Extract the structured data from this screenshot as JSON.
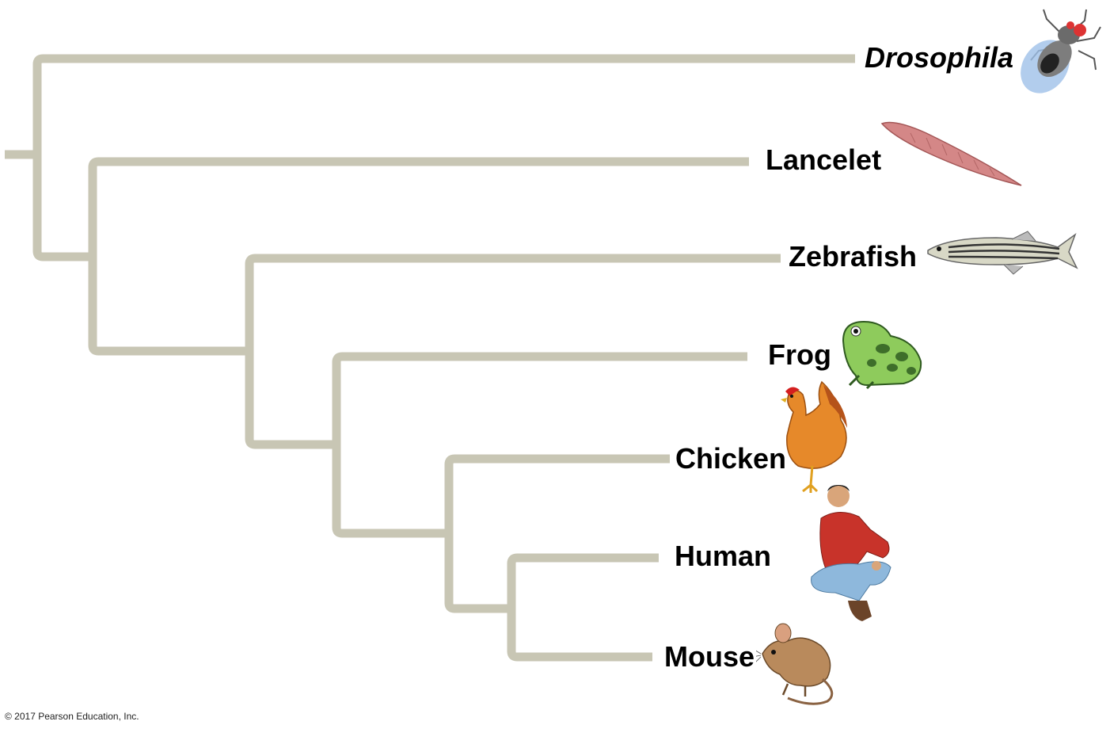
{
  "taxa": [
    {
      "id": "drosophila",
      "label": "Drosophila",
      "italic": true
    },
    {
      "id": "lancelet",
      "label": "Lancelet",
      "italic": false
    },
    {
      "id": "zebrafish",
      "label": "Zebrafish",
      "italic": false
    },
    {
      "id": "frog",
      "label": "Frog",
      "italic": false
    },
    {
      "id": "chicken",
      "label": "Chicken",
      "italic": false
    },
    {
      "id": "human",
      "label": "Human",
      "italic": false
    },
    {
      "id": "mouse",
      "label": "Mouse",
      "italic": false
    }
  ],
  "tree": "(Drosophila,(Lancelet,(Zebrafish,(Frog,(Chicken,(Human,Mouse))))))",
  "colors": {
    "branch": "#c8c6b4",
    "label": "#000000"
  },
  "icons": [
    "fruit-fly-icon",
    "lancelet-icon",
    "zebrafish-icon",
    "frog-icon",
    "chicken-icon",
    "human-icon",
    "mouse-icon"
  ],
  "copyright": "© 2017 Pearson Education, Inc."
}
